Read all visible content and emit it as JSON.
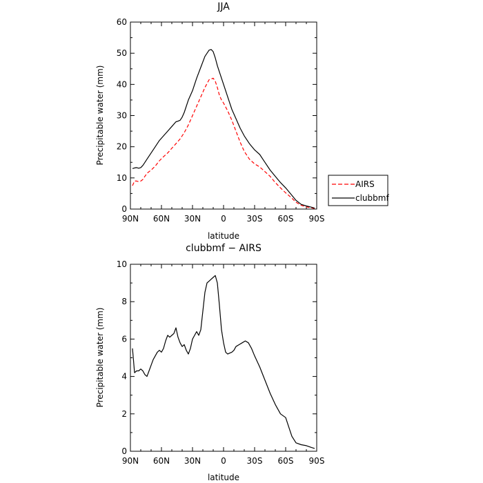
{
  "chart_data": [
    {
      "type": "line",
      "title": "JJA",
      "xlabel": "latitude",
      "ylabel": "Precipitable water (mm)",
      "xlim": [
        90,
        -90
      ],
      "ylim": [
        0,
        60
      ],
      "xticks": [
        90,
        60,
        30,
        0,
        -30,
        -60,
        -90
      ],
      "xtick_labels": [
        "90N",
        "60N",
        "30N",
        "0",
        "30S",
        "60S",
        "90S"
      ],
      "yticks": [
        0,
        10,
        20,
        30,
        40,
        50,
        60
      ],
      "ytick_labels": [
        "0",
        "10",
        "20",
        "30",
        "40",
        "50",
        "60"
      ],
      "grid": false,
      "legend": "outside-right",
      "series": [
        {
          "name": "AIRS",
          "color": "#ff0000",
          "dash": "dashed",
          "x": [
            88,
            86,
            84,
            82,
            80,
            78,
            76,
            74,
            70,
            66,
            62,
            58,
            54,
            50,
            46,
            42,
            38,
            34,
            30,
            26,
            22,
            18,
            14,
            10,
            8,
            6,
            4,
            2,
            0,
            -4,
            -8,
            -12,
            -16,
            -20,
            -25,
            -30,
            -35,
            -40,
            -45,
            -50,
            -55,
            -60,
            -65,
            -70,
            -75,
            -80,
            -85,
            -88
          ],
          "values": [
            7.5,
            9,
            9,
            8.8,
            9,
            9.5,
            10.5,
            11.5,
            12.5,
            13.8,
            15.5,
            16.8,
            18,
            19.5,
            21,
            22.5,
            24.5,
            27,
            30,
            33,
            36,
            39,
            41.5,
            42,
            41,
            39,
            36.5,
            35,
            34,
            31.5,
            28.5,
            25,
            21.5,
            18.5,
            16,
            14.5,
            13.5,
            12,
            10.5,
            8.5,
            6.8,
            5.2,
            3.8,
            2.2,
            1.2,
            0.7,
            0.4,
            0.2
          ]
        },
        {
          "name": "clubbmf",
          "color": "#000000",
          "dash": "solid",
          "x": [
            88,
            86,
            84,
            82,
            80,
            78,
            76,
            74,
            70,
            66,
            62,
            58,
            54,
            50,
            46,
            44,
            42,
            40,
            38,
            34,
            30,
            26,
            22,
            18,
            14,
            12,
            10,
            8,
            6,
            4,
            2,
            0,
            -4,
            -8,
            -12,
            -16,
            -20,
            -25,
            -30,
            -35,
            -40,
            -45,
            -50,
            -55,
            -60,
            -65,
            -70,
            -75,
            -80,
            -85,
            -88
          ],
          "values": [
            13,
            13.2,
            13.3,
            13.1,
            13.3,
            14,
            15,
            16,
            18,
            20,
            22,
            23.5,
            25,
            26.5,
            28,
            28.2,
            28.5,
            29.5,
            31,
            35,
            38,
            42,
            45.5,
            49,
            51,
            51.2,
            50.5,
            48.5,
            46,
            44,
            42,
            40,
            36,
            32,
            29,
            26,
            23.5,
            21,
            19,
            17.5,
            15,
            12.5,
            10.5,
            8.5,
            6.8,
            4.8,
            2.8,
            1.5,
            1,
            0.6,
            0.3
          ]
        }
      ]
    },
    {
      "type": "line",
      "title": "clubbmf − AIRS",
      "xlabel": "latitude",
      "ylabel": "Precipitable water (mm)",
      "xlim": [
        90,
        -90
      ],
      "ylim": [
        0,
        10
      ],
      "xticks": [
        90,
        60,
        30,
        0,
        -30,
        -60,
        -90
      ],
      "xtick_labels": [
        "90N",
        "60N",
        "30N",
        "0",
        "30S",
        "60S",
        "90S"
      ],
      "yticks": [
        0,
        2,
        4,
        6,
        8,
        10
      ],
      "ytick_labels": [
        "0",
        "2",
        "4",
        "6",
        "8",
        "10"
      ],
      "grid": false,
      "series": [
        {
          "color": "#000000",
          "dash": "solid",
          "x": [
            88,
            86,
            84,
            82,
            80,
            78,
            76,
            74,
            72,
            70,
            68,
            66,
            64,
            62,
            60,
            58,
            56,
            54,
            52,
            50,
            48,
            46,
            44,
            42,
            40,
            38,
            36,
            34,
            32,
            30,
            28,
            26,
            24,
            22,
            20,
            18,
            16,
            14,
            12,
            10,
            8,
            6,
            4,
            2,
            0,
            -2,
            -4,
            -6,
            -8,
            -10,
            -12,
            -15,
            -18,
            -21,
            -24,
            -27,
            -30,
            -35,
            -40,
            -45,
            -50,
            -55,
            -60,
            -63,
            -66,
            -70,
            -75,
            -80,
            -85,
            -88
          ],
          "values": [
            5.5,
            4.2,
            4.3,
            4.3,
            4.4,
            4.3,
            4.1,
            4.0,
            4.3,
            4.6,
            4.9,
            5.1,
            5.3,
            5.4,
            5.3,
            5.5,
            5.9,
            6.2,
            6.1,
            6.2,
            6.3,
            6.6,
            6.1,
            5.8,
            5.6,
            5.7,
            5.4,
            5.2,
            5.5,
            6.0,
            6.2,
            6.4,
            6.2,
            6.5,
            7.5,
            8.5,
            9.0,
            9.1,
            9.2,
            9.3,
            9.4,
            9.0,
            7.8,
            6.5,
            5.8,
            5.3,
            5.2,
            5.25,
            5.3,
            5.4,
            5.6,
            5.7,
            5.8,
            5.9,
            5.8,
            5.5,
            5.1,
            4.5,
            3.8,
            3.1,
            2.5,
            2.0,
            1.8,
            1.3,
            0.8,
            0.45,
            0.35,
            0.3,
            0.2,
            0.15
          ]
        }
      ]
    }
  ]
}
